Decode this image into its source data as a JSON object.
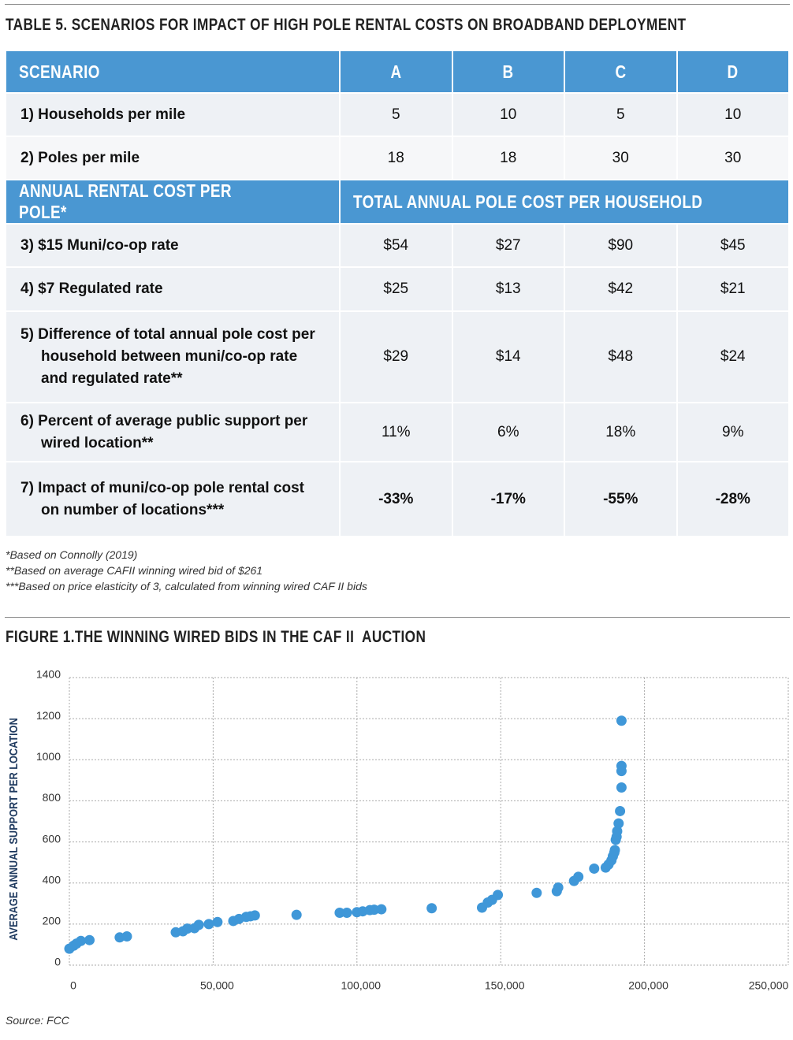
{
  "table_title": "TABLE 5. SCENARIOS FOR IMPACT OF HIGH POLE RENTAL COSTS ON BROADBAND DEPLOYMENT",
  "table": {
    "header": [
      "SCENARIO",
      "A",
      "B",
      "C",
      "D"
    ],
    "section_header": [
      "ANNUAL RENTAL COST PER POLE*",
      "TOTAL ANNUAL POLE COST PER HOUSEHOLD"
    ],
    "rows": [
      [
        "1) Households per mile",
        "5",
        "10",
        "5",
        "10"
      ],
      [
        "2) Poles per mile",
        "18",
        "18",
        "30",
        "30"
      ],
      [
        "3) $15 Muni/co-op rate",
        "$54",
        "$27",
        "$90",
        "$45"
      ],
      [
        "4) $7 Regulated rate",
        "$25",
        "$13",
        "$42",
        "$21"
      ],
      [
        "5) Difference of total annual pole cost per household between muni/co-op rate and regulated rate**",
        "$29",
        "$14",
        "$48",
        "$24"
      ],
      [
        "6) Percent of average public support per wired location**",
        "11%",
        "6%",
        "18%",
        "9%"
      ],
      [
        "7) Impact of muni/co-op pole rental cost on number of locations***",
        "-33%",
        "-17%",
        "-55%",
        "-28%"
      ]
    ]
  },
  "footnotes": [
    "*Based on Connolly (2019)",
    "**Based on average CAFII winning wired bid of $261",
    "***Based on price elasticity of 3, calculated from winning wired CAF II bids"
  ],
  "figure_title": "FIGURE 1.THE WINNING WIRED BIDS IN THE CAF II  AUCTION",
  "chart_data": {
    "type": "scatter",
    "ylabel": "AVERAGE ANNUAL SUPPORT PER LOCATION",
    "color": "#3f97d8",
    "x": [
      0,
      1500,
      2500,
      4000,
      7000,
      17500,
      20000,
      37000,
      39500,
      41000,
      43500,
      45000,
      48500,
      51500,
      57000,
      59000,
      61500,
      63000,
      64500,
      79000,
      94000,
      96500,
      100000,
      102000,
      104500,
      106000,
      108500,
      126000,
      143500,
      145500,
      147000,
      149000,
      162500,
      169500,
      170000,
      175500,
      177000,
      182500,
      186500,
      187500,
      188500,
      189000,
      189500,
      189700,
      190000,
      190300,
      190500,
      191000,
      191500,
      192000,
      192000,
      192000,
      192000
    ],
    "values": [
      80,
      95,
      105,
      118,
      122,
      135,
      140,
      160,
      165,
      178,
      180,
      196,
      200,
      210,
      215,
      225,
      235,
      238,
      242,
      245,
      255,
      255,
      258,
      262,
      268,
      270,
      272,
      277,
      280,
      305,
      318,
      342,
      352,
      360,
      378,
      410,
      430,
      470,
      475,
      490,
      510,
      530,
      548,
      560,
      610,
      625,
      652,
      690,
      750,
      865,
      945,
      970,
      1190
    ],
    "xlim": [
      0,
      250000
    ],
    "ylim": [
      0,
      1400
    ],
    "xticks": [
      0,
      {
        "value": 50000,
        "label": "50,000"
      },
      {
        "value": 100000,
        "label": "100,000"
      },
      {
        "value": 150000,
        "label": "150,000"
      },
      {
        "value": 200000,
        "label": "200,000"
      },
      {
        "value": 250000,
        "label": "250,000"
      }
    ],
    "yticks": [
      0,
      200,
      400,
      600,
      800,
      1000,
      1200,
      1400
    ],
    "grid": true
  },
  "source": "Source: FCC"
}
